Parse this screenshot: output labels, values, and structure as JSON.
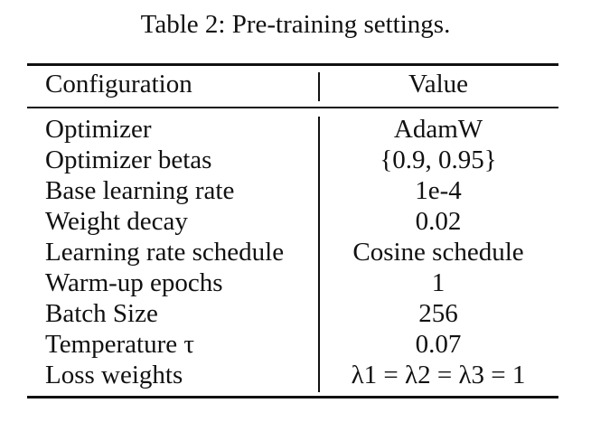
{
  "caption": "Table 2: Pre-training settings.",
  "table": {
    "headers": [
      "Configuration",
      "Value"
    ],
    "rows": [
      {
        "config": "Optimizer",
        "value": "AdamW"
      },
      {
        "config": "Optimizer betas",
        "value": "{0.9, 0.95}"
      },
      {
        "config": "Base learning rate",
        "value": "1e-4"
      },
      {
        "config": "Weight decay",
        "value": "0.02"
      },
      {
        "config": "Learning rate schedule",
        "value": "Cosine schedule"
      },
      {
        "config": "Warm-up epochs",
        "value": "1"
      },
      {
        "config": "Batch Size",
        "value": "256"
      },
      {
        "config": "Temperature τ",
        "value": "0.07"
      },
      {
        "config": "Loss weights",
        "value": "λ1 = λ2 = λ3 = 1"
      }
    ]
  }
}
